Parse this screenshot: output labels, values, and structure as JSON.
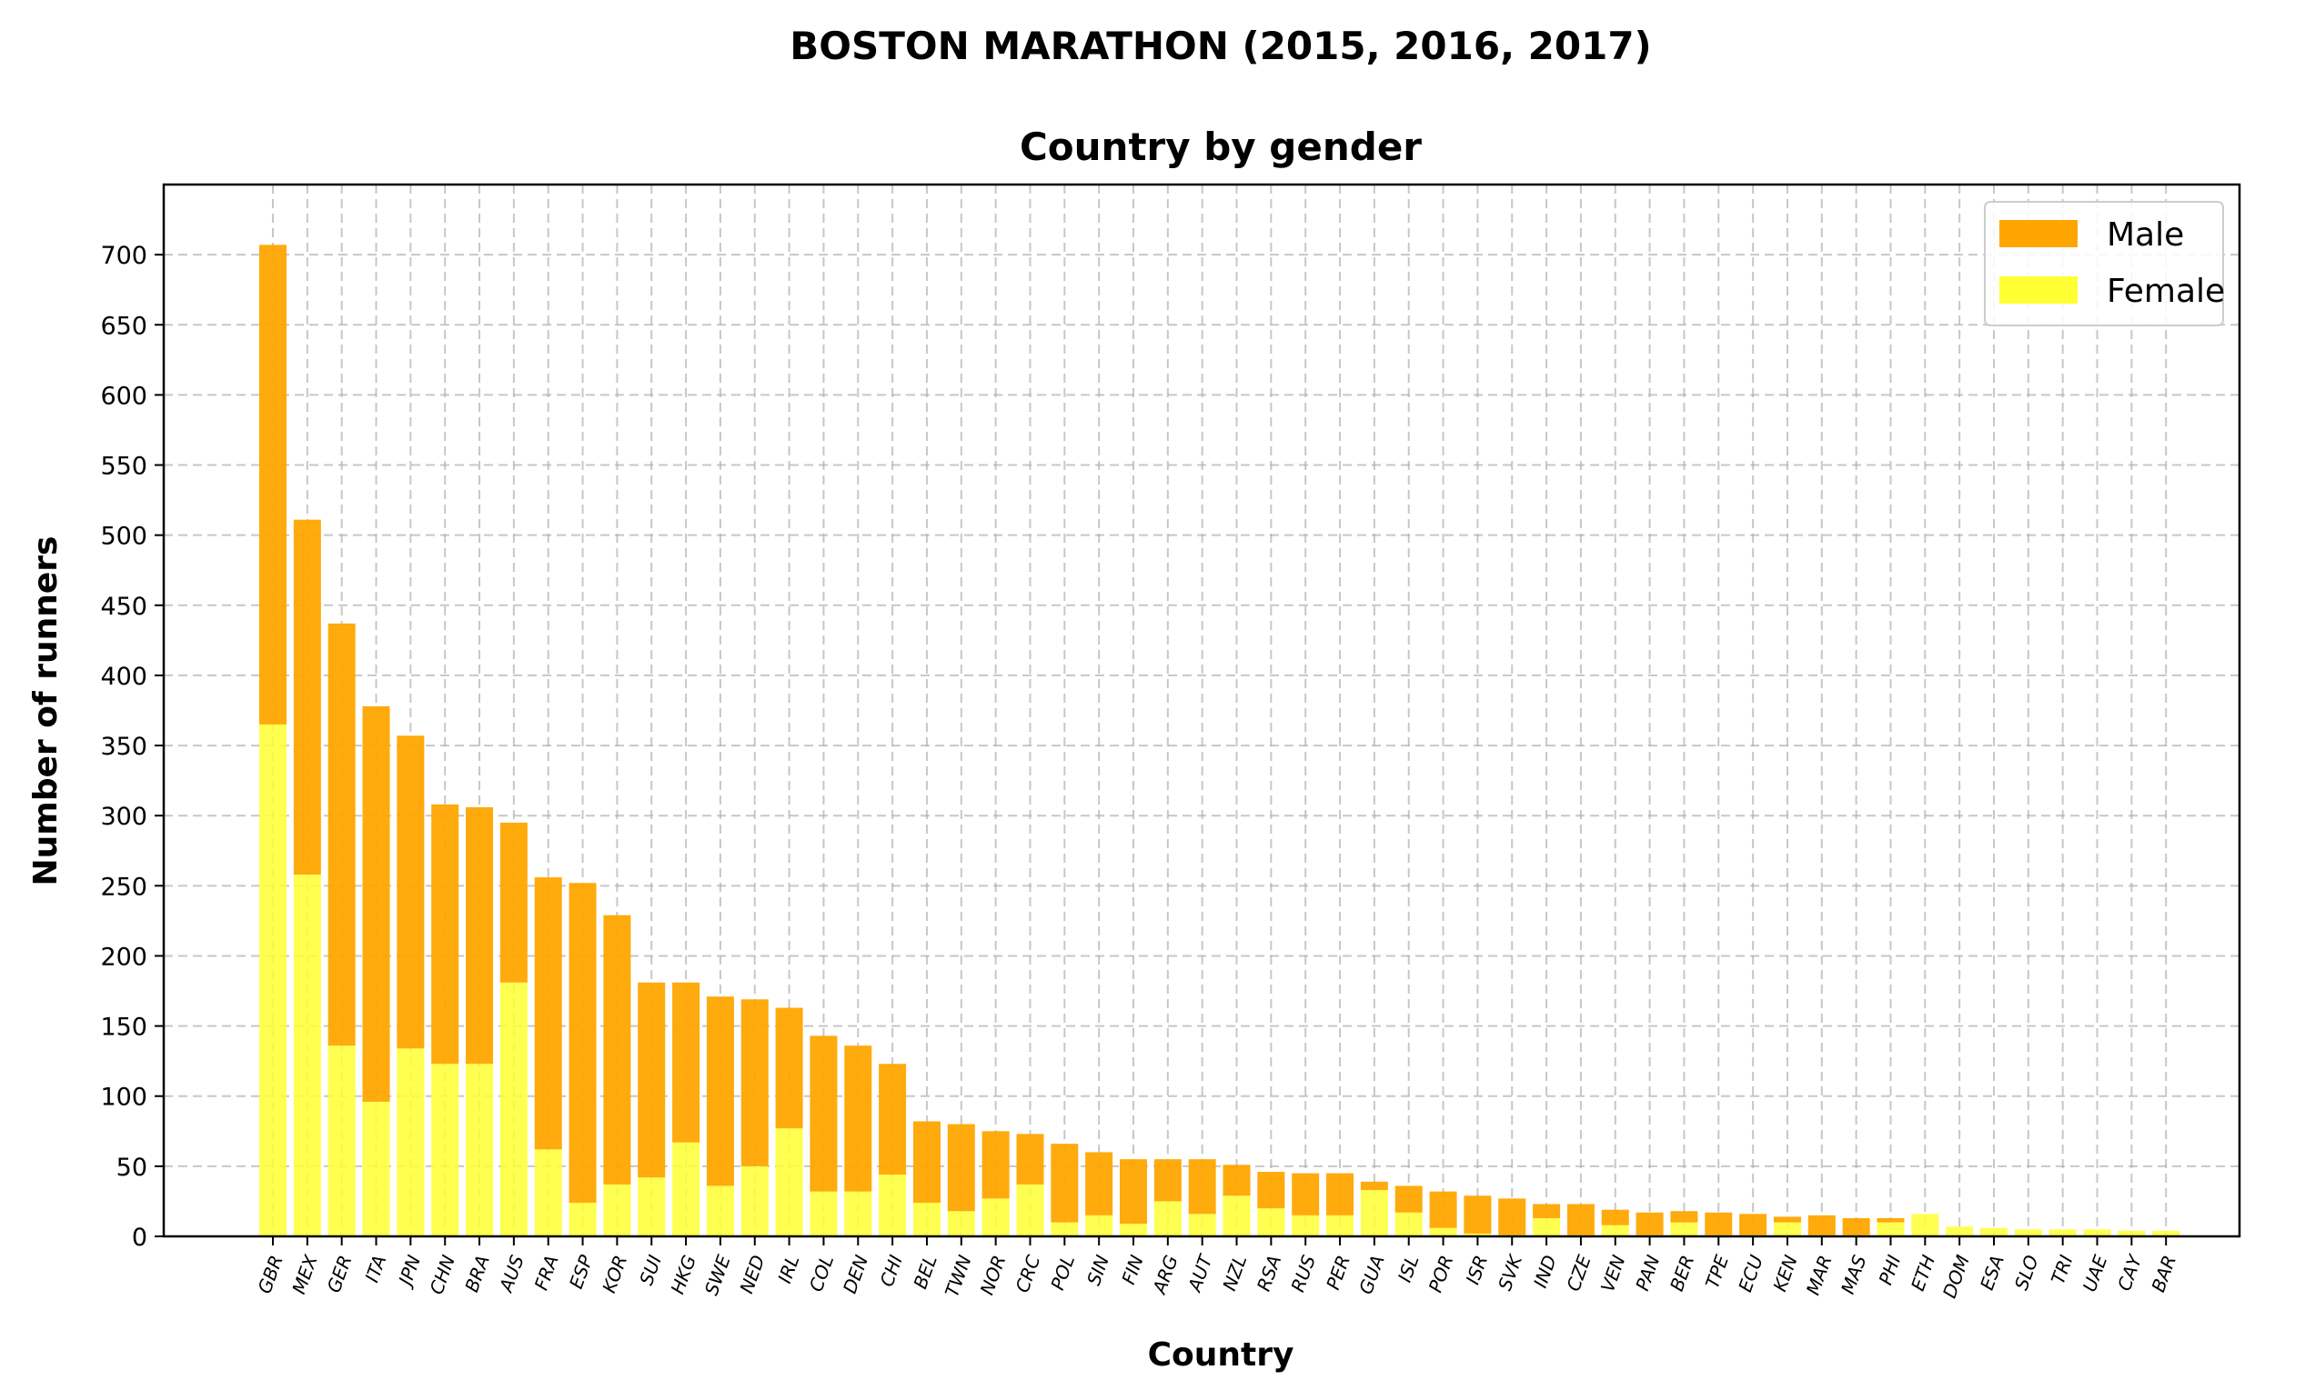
{
  "chart_data": {
    "type": "bar",
    "stacked": true,
    "suptitle": "BOSTON MARATHON (2015, 2016, 2017)",
    "title": "Country by gender",
    "xlabel": "Country",
    "ylabel": "Number of runners",
    "ylim": [
      0,
      750
    ],
    "yticks": [
      0,
      50,
      100,
      150,
      200,
      250,
      300,
      350,
      400,
      450,
      500,
      550,
      600,
      650,
      700
    ],
    "grid": true,
    "legend_position": "top-right",
    "categories": [
      "GBR",
      "MEX",
      "GER",
      "ITA",
      "JPN",
      "CHN",
      "BRA",
      "AUS",
      "FRA",
      "ESP",
      "KOR",
      "SUI",
      "HKG",
      "SWE",
      "NED",
      "IRL",
      "COL",
      "DEN",
      "CHI",
      "BEL",
      "TWN",
      "NOR",
      "CRC",
      "POL",
      "SIN",
      "FIN",
      "ARG",
      "AUT",
      "NZL",
      "RSA",
      "RUS",
      "PER",
      "GUA",
      "ISL",
      "POR",
      "ISR",
      "SVK",
      "IND",
      "CZE",
      "VEN",
      "PAN",
      "BER",
      "TPE",
      "ECU",
      "KEN",
      "MAR",
      "MAS",
      "PHI",
      "ETH",
      "DOM",
      "ESA",
      "SLO",
      "TRI",
      "UAE",
      "CAY",
      "BAR"
    ],
    "series": [
      {
        "name": "Female",
        "color": "#ffff33",
        "values": [
          365,
          258,
          136,
          96,
          134,
          123,
          123,
          181,
          62,
          24,
          37,
          42,
          67,
          36,
          50,
          77,
          32,
          32,
          44,
          24,
          18,
          27,
          37,
          10,
          15,
          9,
          25,
          16,
          29,
          20,
          15,
          15,
          33,
          17,
          6,
          2,
          1,
          13,
          1,
          8,
          1,
          10,
          1,
          1,
          10,
          1,
          1,
          10,
          16,
          7,
          6,
          5,
          5,
          5,
          4,
          4
        ]
      },
      {
        "name": "Male",
        "color": "#ffa500",
        "values": [
          342,
          253,
          301,
          282,
          223,
          185,
          183,
          114,
          194,
          228,
          192,
          139,
          114,
          135,
          119,
          86,
          111,
          104,
          79,
          58,
          62,
          48,
          36,
          56,
          45,
          46,
          30,
          39,
          22,
          26,
          30,
          30,
          6,
          19,
          26,
          27,
          26,
          10,
          22,
          11,
          16,
          8,
          16,
          15,
          4,
          14,
          12,
          3,
          0,
          0,
          0,
          0,
          0,
          0,
          0,
          0
        ]
      }
    ]
  }
}
